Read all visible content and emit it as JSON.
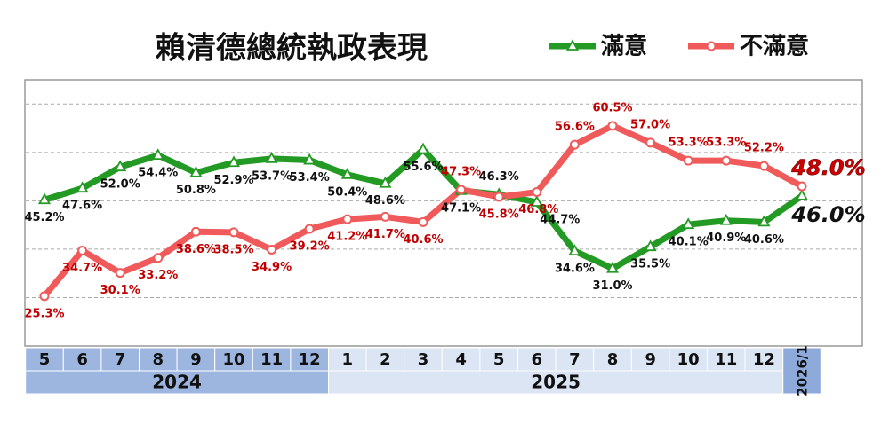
{
  "chart_data": {
    "type": "line",
    "title": "賴清德總統執政表現",
    "categories": [
      "5",
      "6",
      "7",
      "8",
      "9",
      "10",
      "11",
      "12",
      "1",
      "2",
      "3",
      "4",
      "5",
      "6",
      "7",
      "8",
      "9",
      "10",
      "11",
      "12",
      "2026/1"
    ],
    "year_groups": [
      {
        "label": "2024",
        "count": 8
      },
      {
        "label": "2025",
        "count": 12
      }
    ],
    "series": [
      {
        "name": "滿意",
        "color": "#239a23",
        "values": [
          45.2,
          47.6,
          52.0,
          54.4,
          50.8,
          52.9,
          53.7,
          53.4,
          50.4,
          48.6,
          55.6,
          47.1,
          46.3,
          44.7,
          34.6,
          31.0,
          35.5,
          40.1,
          40.9,
          40.6,
          46.0
        ],
        "value_labels": [
          "45.2%",
          "47.6%",
          "52.0%",
          "54.4%",
          "50.8%",
          "52.9%",
          "53.7%",
          "53.4%",
          "50.4%",
          "48.6%",
          "55.6%",
          "47.1%",
          "46.3%",
          "44.7%",
          "34.6%",
          "31.0%",
          "35.5%",
          "40.1%",
          "40.9%",
          "40.6%",
          "46.0%"
        ]
      },
      {
        "name": "不滿意",
        "color": "#f05a5a",
        "values": [
          25.3,
          34.7,
          30.1,
          33.2,
          38.6,
          38.5,
          34.9,
          39.2,
          41.2,
          41.7,
          40.6,
          47.3,
          45.8,
          46.8,
          56.6,
          60.5,
          57.0,
          53.3,
          53.3,
          52.2,
          48.0
        ],
        "value_labels": [
          "25.3%",
          "34.7%",
          "30.1%",
          "33.2%",
          "38.6%",
          "38.5%",
          "34.9%",
          "39.2%",
          "41.2%",
          "41.7%",
          "40.6%",
          "47.3%",
          "45.8%",
          "46.8%",
          "56.6%",
          "60.5%",
          "57.0%",
          "53.3%",
          "53.3%",
          "52.2%",
          "48.0%"
        ]
      }
    ],
    "ylim": [
      15,
      70
    ],
    "yticks": [
      25,
      35,
      45,
      55,
      65
    ],
    "grid": true
  }
}
